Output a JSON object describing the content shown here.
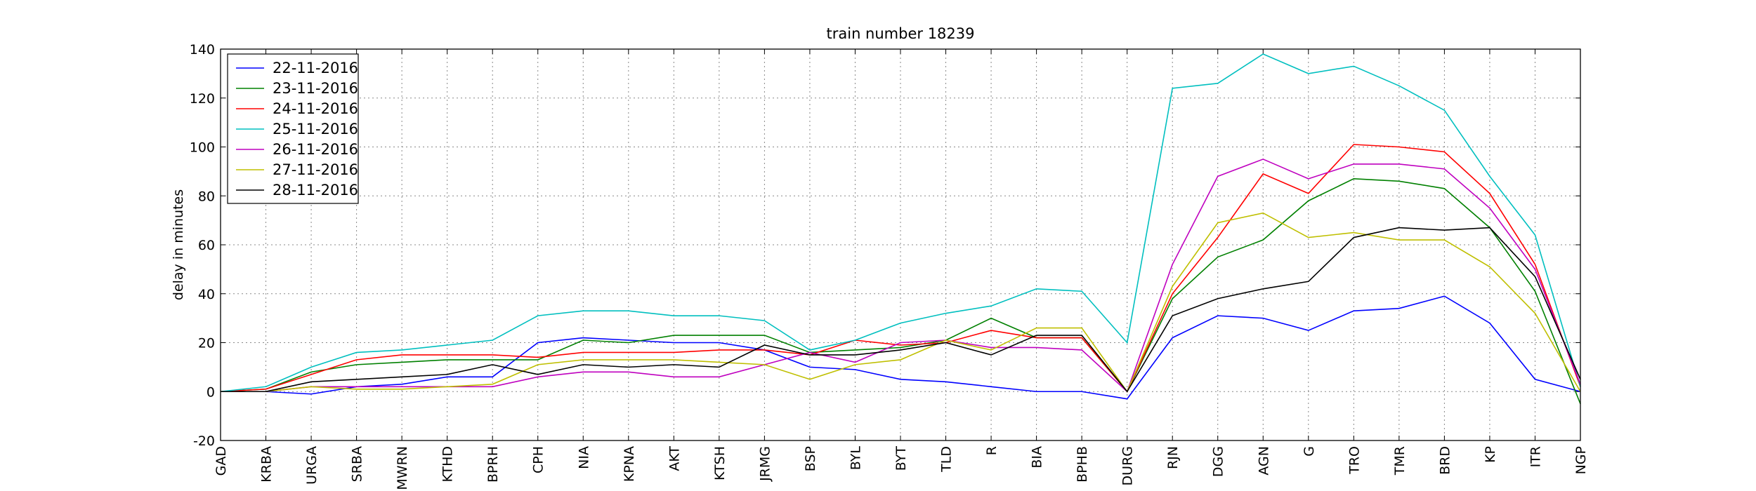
{
  "chart_data": {
    "type": "line",
    "title": "train number 18239",
    "y_label": "delay in minutes",
    "categories": [
      "GAD",
      "KRBA",
      "URGA",
      "SRBA",
      "MWRN",
      "KTHD",
      "BPRH",
      "CPH",
      "NIA",
      "KPNA",
      "AKT",
      "KTSH",
      "JRMG",
      "BSP",
      "BYL",
      "BYT",
      "TLD",
      "R",
      "BIA",
      "BPHB",
      "DURG",
      "RJN",
      "DGG",
      "AGN",
      "G",
      "TRO",
      "TMR",
      "BRD",
      "KP",
      "ITR",
      "NGP"
    ],
    "series": [
      {
        "name": "22-11-2016",
        "color": "#0000ff",
        "values": [
          0,
          0,
          -1,
          2,
          3,
          6,
          6,
          20,
          22,
          21,
          20,
          20,
          17,
          10,
          9,
          5,
          4,
          2,
          0,
          0,
          -3,
          22,
          31,
          30,
          25,
          33,
          34,
          39,
          28,
          5,
          0
        ]
      },
      {
        "name": "23-11-2016",
        "color": "#008000",
        "values": [
          0,
          1,
          8,
          11,
          12,
          13,
          13,
          13,
          21,
          20,
          23,
          23,
          23,
          16,
          17,
          18,
          21,
          30,
          22,
          22,
          0,
          38,
          55,
          62,
          78,
          87,
          86,
          83,
          67,
          41,
          -5
        ]
      },
      {
        "name": "24-11-2016",
        "color": "#ff0000",
        "values": [
          0,
          1,
          7,
          13,
          15,
          15,
          15,
          14,
          16,
          16,
          16,
          17,
          17,
          15,
          21,
          19,
          20,
          25,
          22,
          22,
          0,
          40,
          63,
          89,
          81,
          101,
          100,
          98,
          81,
          52,
          2
        ]
      },
      {
        "name": "25-11-2016",
        "color": "#00bfbf",
        "values": [
          0,
          2,
          10,
          16,
          17,
          19,
          21,
          31,
          33,
          33,
          31,
          31,
          29,
          17,
          21,
          28,
          32,
          35,
          42,
          41,
          20,
          124,
          126,
          138,
          130,
          133,
          125,
          115,
          88,
          64,
          2
        ]
      },
      {
        "name": "26-11-2016",
        "color": "#bf00bf",
        "values": [
          0,
          0,
          2,
          2,
          2,
          2,
          2,
          6,
          8,
          8,
          6,
          6,
          11,
          16,
          12,
          20,
          21,
          18,
          18,
          17,
          0,
          52,
          88,
          95,
          87,
          93,
          93,
          91,
          75,
          50,
          3
        ]
      },
      {
        "name": "27-11-2016",
        "color": "#bfbf00",
        "values": [
          0,
          0,
          2,
          1,
          1,
          2,
          3,
          11,
          13,
          13,
          13,
          12,
          11,
          5,
          11,
          13,
          21,
          17,
          26,
          26,
          0,
          43,
          69,
          73,
          63,
          65,
          62,
          62,
          51,
          32,
          0
        ]
      },
      {
        "name": "28-11-2016",
        "color": "#000000",
        "values": [
          0,
          0,
          4,
          5,
          6,
          7,
          11,
          7,
          11,
          10,
          11,
          10,
          19,
          15,
          15,
          17,
          20,
          15,
          23,
          23,
          0,
          31,
          38,
          42,
          45,
          63,
          67,
          66,
          67,
          47,
          5
        ]
      }
    ],
    "ylim": [
      -20,
      140
    ],
    "yticks": [
      -20,
      0,
      20,
      40,
      60,
      80,
      100,
      120,
      140
    ],
    "grid": true,
    "legend": "upper-left"
  }
}
